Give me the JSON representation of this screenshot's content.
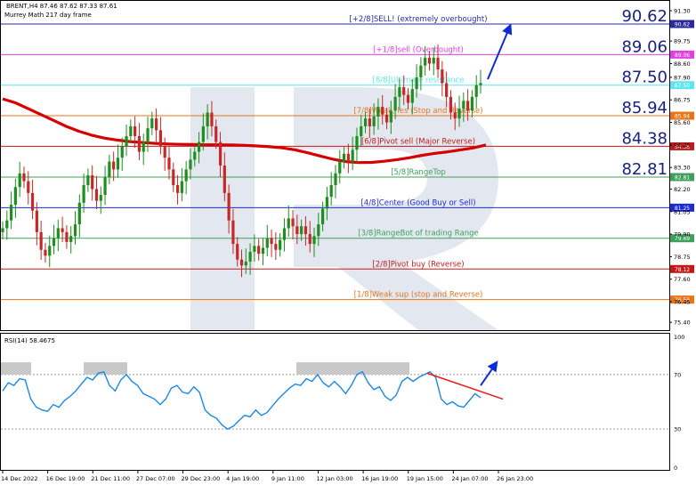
{
  "header": {
    "symbol_line": "BRENT,H4  87.46 87.62 87.33 87.61",
    "indicator_line": "Murrey Math 217 day frame",
    "rsi_title": "RSI(14) 58.4675"
  },
  "colors": {
    "up_candle": "#1e8e1e",
    "down_candle": "#c62828",
    "ma_line": "#d50000",
    "rsi_line": "#1e88e5",
    "watermark": "#e3e8f0",
    "big_label": "#1a237e",
    "arrow": "#0d2bd6"
  },
  "levels": [
    {
      "value": 90.62,
      "label": "[+2/8]SELL! (extremely overbought)",
      "color": "#2a2a9c",
      "big_label": "90.62"
    },
    {
      "value": 89.06,
      "label": "[+1/8]sell (Overbought)",
      "color": "#e040e0",
      "big_label": "89.06"
    },
    {
      "value": 87.5,
      "label": "[8/8]Ultimate resistance",
      "color": "#5ee6f0",
      "big_label": "87.50"
    },
    {
      "value": 85.94,
      "label": "[7/8]Weak, les (Stop and Reverse)",
      "color": "#e8751a",
      "big_label": "85.94"
    },
    {
      "value": 84.38,
      "label": "[6/8]Pivot sell (Major Reverse)",
      "color": "#c21a1a",
      "big_label": "84.38"
    },
    {
      "value": 82.81,
      "label": "[5/8]RangeTop",
      "color": "#3fa05a",
      "big_label": "82.81"
    },
    {
      "value": 81.25,
      "label": "[4/8]Center (Good Buy or Sell)",
      "color": "#1c2ad4",
      "big_label": ""
    },
    {
      "value": 79.69,
      "label": "[3/8]RangeBot of trading Range",
      "color": "#3fa05a",
      "big_label": ""
    },
    {
      "value": 78.12,
      "label": "[2/8]Pivot buy (Reverse)",
      "color": "#c21a1a",
      "big_label": ""
    },
    {
      "value": 76.56,
      "label": "[1/8]Weak sup (stop and Reverse)",
      "color": "#e8751a",
      "big_label": ""
    }
  ],
  "price_ticks": [
    "91.30",
    "89.75",
    "88.60",
    "87.90",
    "86.75",
    "85.60",
    "84.45",
    "83.30",
    "82.20",
    "81.05",
    "79.90",
    "78.75",
    "77.60",
    "76.45",
    "75.40"
  ],
  "rsi_ticks": [
    "100",
    "70",
    "30",
    "0"
  ],
  "time_labels": [
    "14 Dec 2022",
    "16 Dec 19:00",
    "21 Dec 11:00",
    "27 Dec 07:00",
    "29 Dec 23:00",
    "4 Jan 19:00",
    "9 Jan 11:00",
    "12 Jan 03:00",
    "16 Jan 19:00",
    "19 Jan 15:00",
    "24 Jan 07:00",
    "26 Jan 23:00"
  ],
  "chart_data": {
    "type": "line",
    "title": "BRENT,H4",
    "ylim": [
      75.0,
      91.8
    ],
    "close_series": [
      80.2,
      80.6,
      81.4,
      82.3,
      83.0,
      82.6,
      82.0,
      81.1,
      80.0,
      79.1,
      78.8,
      79.3,
      79.7,
      80.2,
      80.0,
      79.5,
      79.8,
      80.4,
      81.5,
      82.4,
      82.9,
      82.2,
      81.6,
      81.9,
      82.8,
      83.6,
      83.2,
      83.8,
      84.4,
      84.9,
      85.4,
      84.9,
      84.1,
      84.6,
      85.3,
      85.8,
      85.2,
      84.4,
      83.8,
      83.2,
      82.4,
      82.0,
      82.6,
      83.2,
      83.7,
      84.1,
      84.6,
      85.4,
      86.1,
      85.4,
      84.6,
      83.4,
      82.0,
      80.6,
      79.4,
      78.6,
      78.3,
      78.5,
      79.0,
      79.3,
      78.9,
      79.2,
      79.7,
      79.4,
      79.1,
      79.6,
      80.2,
      80.7,
      80.3,
      79.9,
      80.3,
      79.9,
      79.4,
      79.8,
      80.4,
      81.2,
      81.8,
      82.4,
      83.0,
      83.6,
      84.0,
      83.6,
      84.2,
      84.9,
      85.4,
      85.8,
      85.4,
      85.9,
      86.4,
      86.0,
      85.6,
      86.2,
      86.9,
      87.4,
      87.0,
      86.6,
      87.3,
      87.9,
      88.5,
      88.9,
      88.6,
      88.9,
      88.3,
      87.6,
      86.9,
      86.1,
      85.8,
      86.3,
      86.7,
      86.2,
      86.9,
      87.5,
      87.61
    ],
    "ma_series": [
      86.8,
      86.6,
      86.3,
      86.0,
      85.7,
      85.4,
      85.15,
      84.95,
      84.8,
      84.7,
      84.62,
      84.57,
      84.53,
      84.5,
      84.48,
      84.47,
      84.46,
      84.46,
      84.45,
      84.43,
      84.4,
      84.36,
      84.3,
      84.2,
      84.05,
      83.88,
      83.72,
      83.6,
      83.55,
      83.56,
      83.62,
      83.7,
      83.8,
      83.92,
      84.02,
      84.1,
      84.2,
      84.3,
      84.45
    ],
    "rsi_series": [
      58,
      64,
      62,
      67,
      66,
      52,
      46,
      44,
      43,
      48,
      46,
      51,
      54,
      58,
      63,
      68,
      66,
      71,
      72,
      62,
      58,
      66,
      70,
      65,
      62,
      56,
      54,
      52,
      48,
      52,
      60,
      62,
      57,
      56,
      61,
      57,
      44,
      40,
      38,
      33,
      30,
      32,
      36,
      40,
      39,
      44,
      40,
      42,
      47,
      52,
      56,
      60,
      63,
      62,
      67,
      65,
      70,
      64,
      61,
      65,
      61,
      56,
      62,
      70,
      72,
      64,
      59,
      61,
      54,
      51,
      55,
      65,
      68,
      65,
      68,
      70,
      72,
      68,
      52,
      48,
      50,
      47,
      46,
      51,
      56,
      53
    ]
  }
}
